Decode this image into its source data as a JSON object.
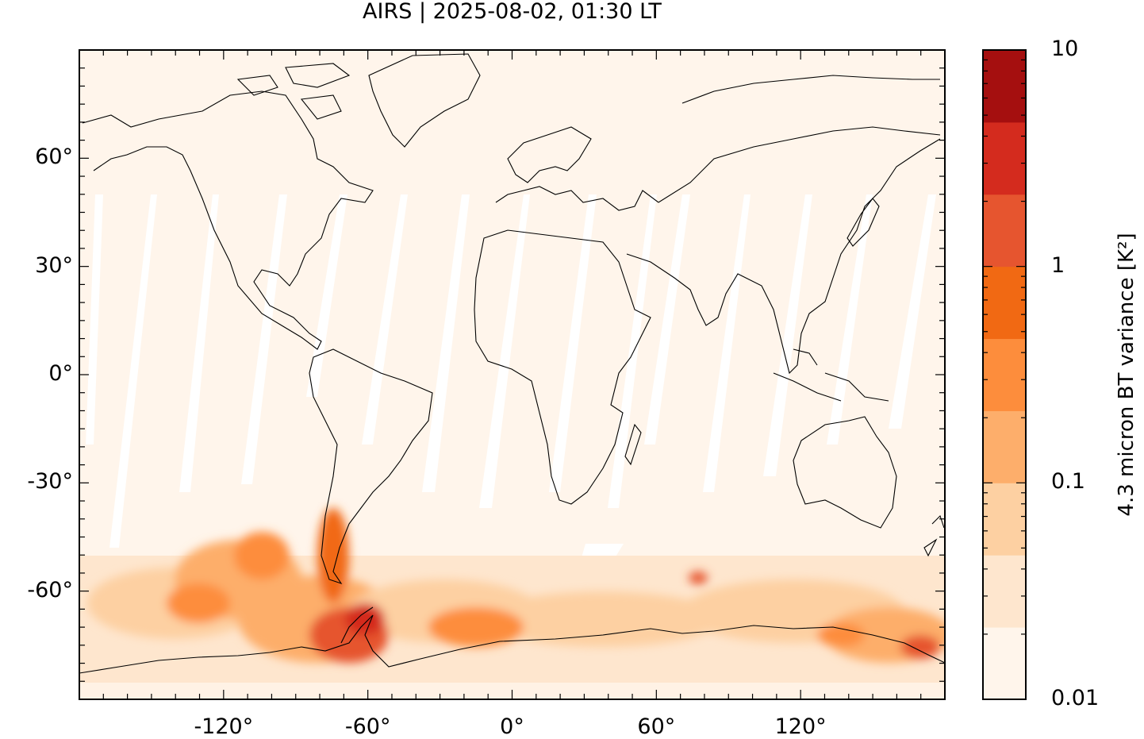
{
  "title": "AIRS | 2025-08-02, 01:30 LT",
  "map": {
    "projection": "plate-carree",
    "lon_range": [
      -180,
      180
    ],
    "lat_range": [
      -90,
      90
    ],
    "lat_ticks": [
      {
        "value": 60,
        "label": "60°"
      },
      {
        "value": 30,
        "label": "30°"
      },
      {
        "value": 0,
        "label": "0°"
      },
      {
        "value": -30,
        "label": "-30°"
      },
      {
        "value": -60,
        "label": "-60°"
      }
    ],
    "lon_ticks": [
      {
        "value": -120,
        "label": "-120°"
      },
      {
        "value": -60,
        "label": "-60°"
      },
      {
        "value": 0,
        "label": "0°"
      },
      {
        "value": 60,
        "label": "60°"
      },
      {
        "value": 120,
        "label": "120°"
      }
    ],
    "coastlines": true,
    "background_color": "#fff5eb"
  },
  "colorbar": {
    "label": "4.3 micron BT variance [K²]",
    "scale": "log",
    "range": [
      0.01,
      10
    ],
    "tick_labels": [
      {
        "value": 10,
        "label": "10"
      },
      {
        "value": 1,
        "label": "1"
      },
      {
        "value": 0.1,
        "label": "0.1"
      },
      {
        "value": 0.01,
        "label": "0.01"
      }
    ],
    "colors": [
      "#fff5eb",
      "#fee6ce",
      "#fdd0a2",
      "#fdae6b",
      "#fd8d3c",
      "#f16913",
      "#e6552f",
      "#d42b1e",
      "#a50f0f"
    ]
  }
}
